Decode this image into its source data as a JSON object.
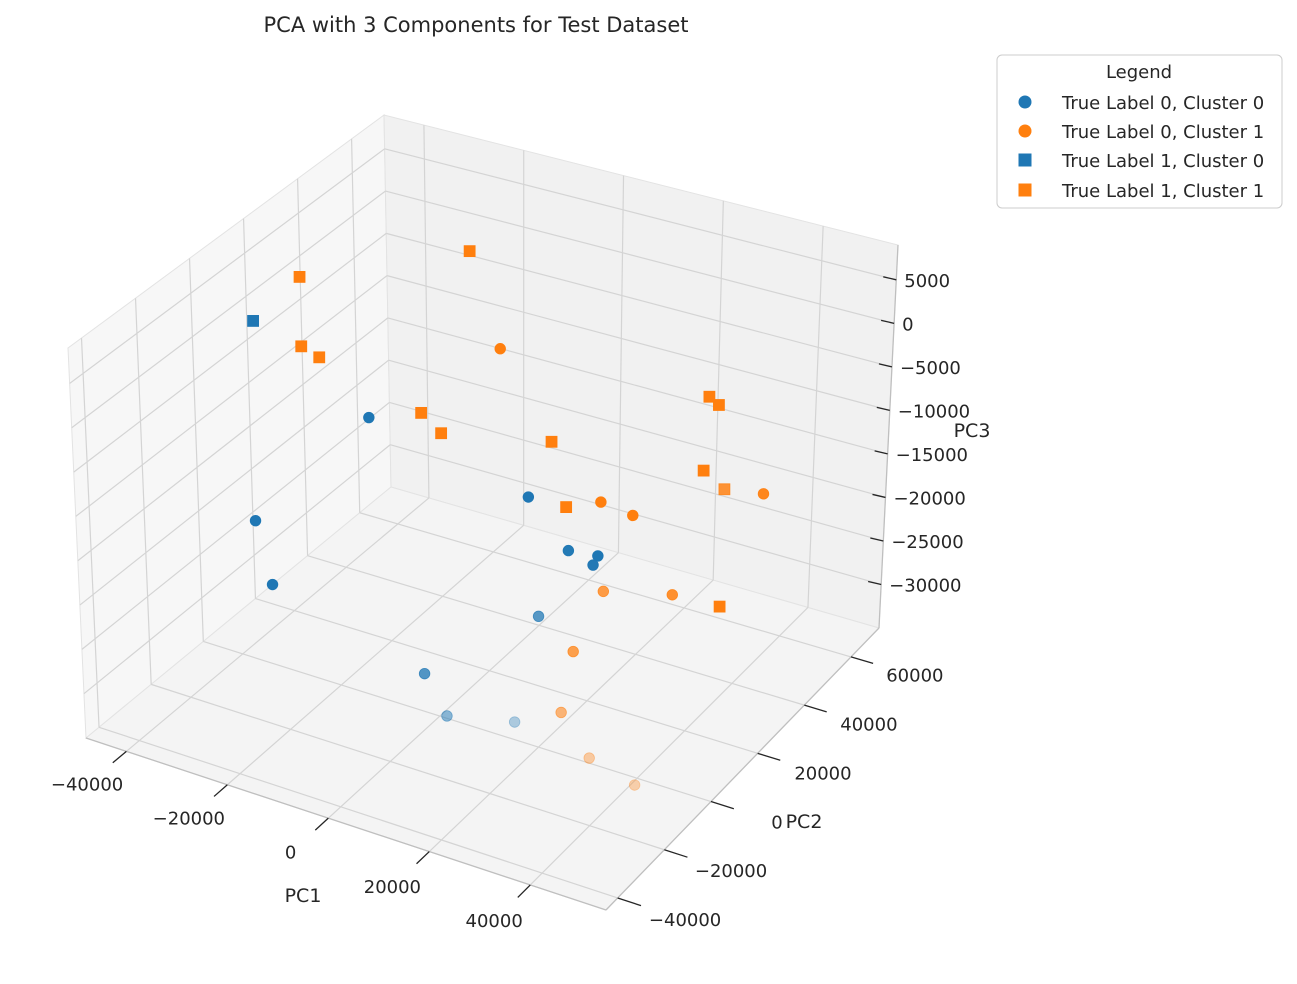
{
  "chart_data": {
    "type": "scatter",
    "projection": "3d",
    "title": "PCA with 3 Components for Test Dataset",
    "xlabel": "PC1",
    "ylabel": "PC2",
    "zlabel": "PC3",
    "xlim": [
      -48000,
      55000
    ],
    "ylim": [
      -45000,
      72000
    ],
    "zlim": [
      -35000,
      9000
    ],
    "x_ticks": [
      -40000,
      -20000,
      0,
      20000,
      40000
    ],
    "y_ticks": [
      -40000,
      -20000,
      0,
      20000,
      40000,
      60000
    ],
    "z_ticks": [
      5000,
      0,
      -5000,
      -10000,
      -15000,
      -20000,
      -25000,
      -30000
    ],
    "x_tick_labels": [
      "−40000",
      "−20000",
      "0",
      "20000",
      "40000"
    ],
    "y_tick_labels": [
      "−40000",
      "−20000",
      "0",
      "20000",
      "40000",
      "60000"
    ],
    "z_tick_labels": [
      "5000",
      "0",
      "−5000",
      "−10000",
      "−15000",
      "−20000",
      "−25000",
      "−30000"
    ],
    "grid": true,
    "legend": {
      "title": "Legend",
      "position": "upper-right-outside",
      "entries": [
        {
          "label": "True Label 0, Cluster 0",
          "color": "#1f77b4",
          "marker": "circle"
        },
        {
          "label": "True Label 0, Cluster 1",
          "color": "#ff7f0e",
          "marker": "circle"
        },
        {
          "label": "True Label 1, Cluster 0",
          "color": "#1f77b4",
          "marker": "square"
        },
        {
          "label": "True Label 1, Cluster 1",
          "color": "#ff7f0e",
          "marker": "square"
        }
      ]
    },
    "series": [
      {
        "name": "True Label 0, Cluster 0",
        "color": "#1f77b4",
        "marker": "circle",
        "points": [
          {
            "x": -42000,
            "y": 10000,
            "z": -22500
          },
          {
            "x": -40000,
            "y": 12000,
            "z": -30000
          },
          {
            "x": -32000,
            "y": 35000,
            "z": -15000
          },
          {
            "x": -2000,
            "y": -2000,
            "z": -30000
          },
          {
            "x": 9000,
            "y": -15000,
            "z": -29500
          },
          {
            "x": 18000,
            "y": 4000,
            "z": -21500
          },
          {
            "x": 20000,
            "y": 22000,
            "z": -20000
          },
          {
            "x": 16000,
            "y": 20000,
            "z": -18500
          },
          {
            "x": -9000,
            "y": 53000,
            "z": -25000
          },
          {
            "x": 12000,
            "y": 40000,
            "z": -25000
          },
          {
            "x": 25000,
            "y": -20000,
            "z": -26000
          }
        ]
      },
      {
        "name": "True Label 0, Cluster 1",
        "color": "#ff7f0e",
        "marker": "circle",
        "points": [
          {
            "x": -9000,
            "y": 42000,
            "z": -5000
          },
          {
            "x": 15000,
            "y": 35000,
            "z": -17000
          },
          {
            "x": 20000,
            "y": 38000,
            "z": -18500
          },
          {
            "x": 28000,
            "y": 10000,
            "z": -18500
          },
          {
            "x": 37000,
            "y": 20000,
            "z": -20000
          },
          {
            "x": 24000,
            "y": 6000,
            "z": -25000
          },
          {
            "x": 27000,
            "y": -5000,
            "z": -28500
          },
          {
            "x": 37000,
            "y": -14000,
            "z": -29500
          },
          {
            "x": 48000,
            "y": -18000,
            "z": -29500
          },
          {
            "x": 50000,
            "y": 30000,
            "z": -9000
          }
        ]
      },
      {
        "name": "True Label 1, Cluster 0",
        "color": "#1f77b4",
        "marker": "square",
        "points": [
          {
            "x": -44000,
            "y": 15000,
            "z": -1000
          }
        ]
      },
      {
        "name": "True Label 1, Cluster 1",
        "color": "#ff7f0e",
        "marker": "square",
        "points": [
          {
            "x": -34000,
            "y": 14000,
            "z": 6000
          },
          {
            "x": -34000,
            "y": 14000,
            "z": -2000
          },
          {
            "x": -31000,
            "y": 15000,
            "z": -3000
          },
          {
            "x": -14000,
            "y": 40000,
            "z": 6000
          },
          {
            "x": -14000,
            "y": 21000,
            "z": -8000
          },
          {
            "x": -9000,
            "y": 19000,
            "z": -9000
          },
          {
            "x": 9000,
            "y": 27000,
            "z": -9000
          },
          {
            "x": 12000,
            "y": 27000,
            "z": -16000
          },
          {
            "x": 32000,
            "y": 44000,
            "z": -4500
          },
          {
            "x": 32000,
            "y": 48000,
            "z": -6500
          },
          {
            "x": 37000,
            "y": 32000,
            "z": -9000
          },
          {
            "x": 38000,
            "y": 38000,
            "z": -26000
          },
          {
            "x": 46000,
            "y": 22000,
            "z": -7000
          }
        ]
      }
    ]
  }
}
